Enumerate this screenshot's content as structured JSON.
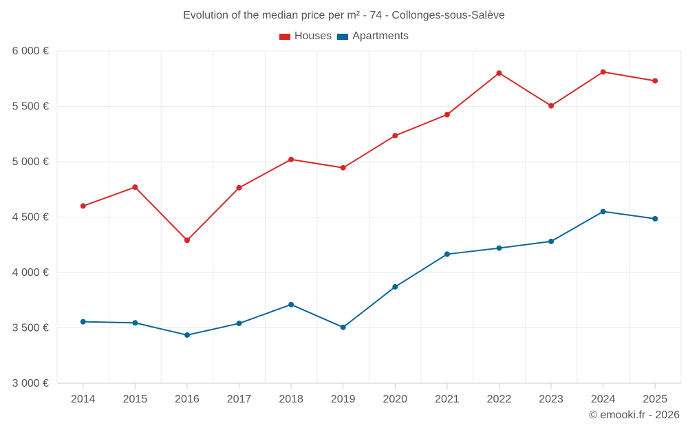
{
  "chart_data": {
    "type": "line",
    "title": "Evolution of the median price per m² - 74 - Collonges-sous-Salève",
    "xlabel": "",
    "ylabel": "",
    "ylim": [
      3000,
      6000
    ],
    "yticks": [
      3000,
      3500,
      4000,
      4500,
      5000,
      5500,
      6000
    ],
    "ytick_labels": [
      "3 000 €",
      "3 500 €",
      "4 000 €",
      "4 500 €",
      "5 000 €",
      "5 500 €",
      "6 000 €"
    ],
    "categories": [
      "2014",
      "2015",
      "2016",
      "2017",
      "2018",
      "2019",
      "2020",
      "2021",
      "2022",
      "2023",
      "2024",
      "2025"
    ],
    "series": [
      {
        "name": "Houses",
        "color": "#d62728",
        "values": [
          4600,
          4770,
          4290,
          4765,
          5020,
          4945,
          5235,
          5425,
          5800,
          5505,
          5810,
          5730
        ]
      },
      {
        "name": "Apartments",
        "color": "#0a6698",
        "values": [
          3555,
          3545,
          3435,
          3540,
          3710,
          3505,
          3870,
          4165,
          4220,
          4280,
          4550,
          4485
        ]
      }
    ],
    "grid": true,
    "legend_position": "top-center"
  },
  "credit": "© emooki.fr - 2026"
}
